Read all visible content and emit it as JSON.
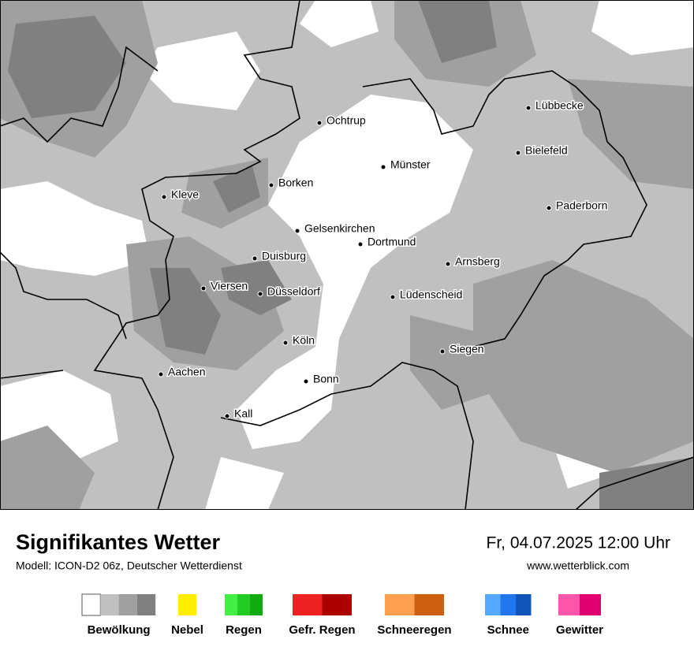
{
  "header": {
    "title": "Signifikantes Wetter",
    "subtitle": "Modell: ICON-D2 06z, Deutscher Wetterdienst",
    "datetime": "Fr, 04.07.2025 12:00 Uhr",
    "website": "www.wetterblick.com"
  },
  "cities": [
    "Lübbecke",
    "Ochtrup",
    "Bielefeld",
    "Münster",
    "Borken",
    "Kleve",
    "Paderborn",
    "Gelsenkirchen",
    "Dortmund",
    "Duisburg",
    "Arnsberg",
    "Viersen",
    "Düsseldorf",
    "Lüdenscheid",
    "Köln",
    "Siegen",
    "Aachen",
    "Bonn",
    "Kall"
  ],
  "legend": [
    {
      "label": "Bewölkung",
      "colors": [
        "#ffffff",
        "#c0c0c0",
        "#a0a0a0",
        "#808080"
      ]
    },
    {
      "label": "Nebel",
      "colors": [
        "#ffee00"
      ]
    },
    {
      "label": "Regen",
      "colors": [
        "#44ee44",
        "#22cc22",
        "#11aa11"
      ]
    },
    {
      "label": "Gefr. Regen",
      "colors": [
        "#ee2222",
        "#aa0000"
      ]
    },
    {
      "label": "Schneeregen",
      "colors": [
        "#ffa050",
        "#cc6010"
      ]
    },
    {
      "label": "Schnee",
      "colors": [
        "#55aaff",
        "#2277ee",
        "#1155bb"
      ]
    },
    {
      "label": "Gewitter",
      "colors": [
        "#ff55aa",
        "#e00070"
      ]
    }
  ]
}
